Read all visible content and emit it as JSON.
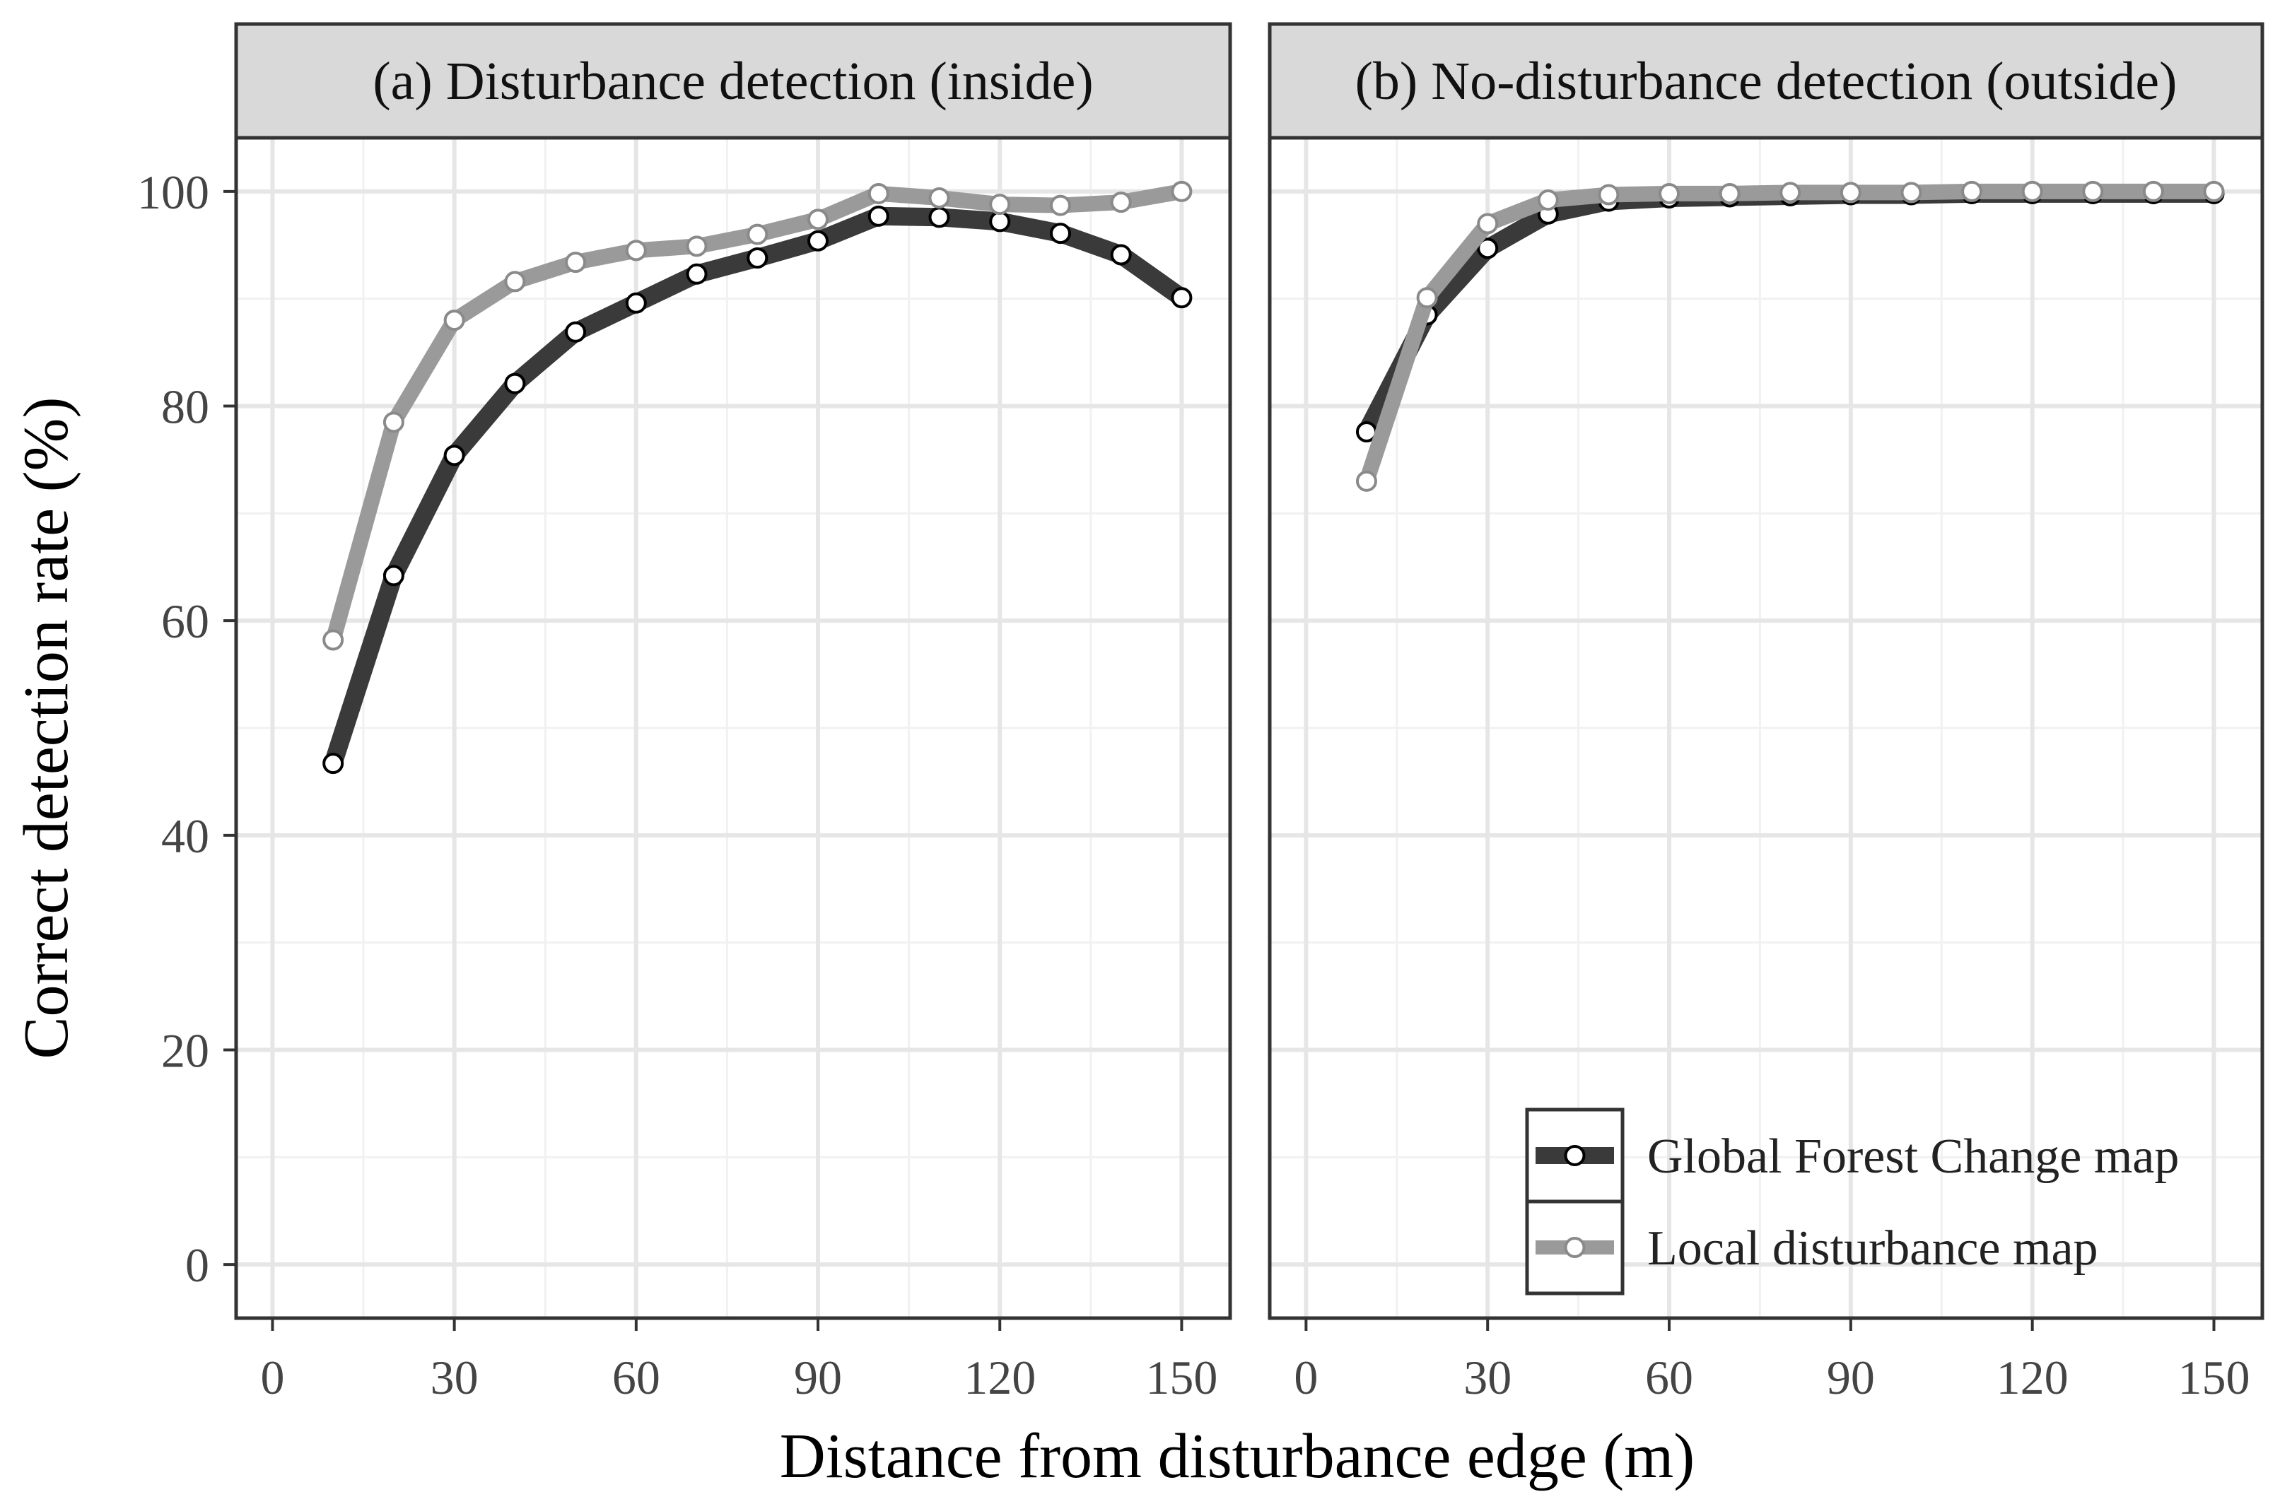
{
  "chart_data": {
    "type": "line",
    "ylabel": "Correct detection rate (%)",
    "xlabel": "Distance from disturbance edge (m)",
    "xlim": [
      -6,
      158
    ],
    "ylim": [
      -5,
      105
    ],
    "xticks": [
      0,
      30,
      60,
      90,
      120,
      150
    ],
    "yticks": [
      0,
      20,
      40,
      60,
      80,
      100
    ],
    "grid": true,
    "legend_position": "bottom-right",
    "series_styles": [
      {
        "name": "Global Forest Change map",
        "color": "#3a3a3a"
      },
      {
        "name": "Local disturbance map",
        "color": "#9a9a9a"
      }
    ],
    "panels": [
      {
        "title": "(a) Disturbance detection (inside)",
        "x": [
          10,
          20,
          30,
          40,
          50,
          60,
          70,
          80,
          90,
          100,
          110,
          120,
          130,
          140,
          150
        ],
        "series": [
          {
            "name": "Global Forest Change map",
            "values": [
              46.7,
              64.2,
              75.4,
              82.1,
              86.9,
              89.6,
              92.3,
              93.8,
              95.4,
              97.7,
              97.6,
              97.2,
              96.1,
              94.1,
              90.1
            ]
          },
          {
            "name": "Local disturbance map",
            "values": [
              58.2,
              78.5,
              88.0,
              91.6,
              93.4,
              94.5,
              94.9,
              96.0,
              97.4,
              99.8,
              99.4,
              98.8,
              98.7,
              99.0,
              100.0
            ]
          }
        ]
      },
      {
        "title": "(b) No-disturbance detection (outside)",
        "x": [
          10,
          20,
          30,
          40,
          50,
          60,
          70,
          80,
          90,
          100,
          110,
          120,
          130,
          140,
          150
        ],
        "series": [
          {
            "name": "Global Forest Change map",
            "values": [
              77.6,
              88.5,
              94.7,
              97.9,
              99.1,
              99.4,
              99.5,
              99.6,
              99.7,
              99.7,
              99.8,
              99.8,
              99.8,
              99.8,
              99.8
            ]
          },
          {
            "name": "Local disturbance map",
            "values": [
              73.0,
              90.1,
              97.0,
              99.2,
              99.7,
              99.8,
              99.8,
              99.9,
              99.9,
              99.9,
              100.0,
              100.0,
              100.0,
              100.0,
              100.0
            ]
          }
        ]
      }
    ]
  }
}
